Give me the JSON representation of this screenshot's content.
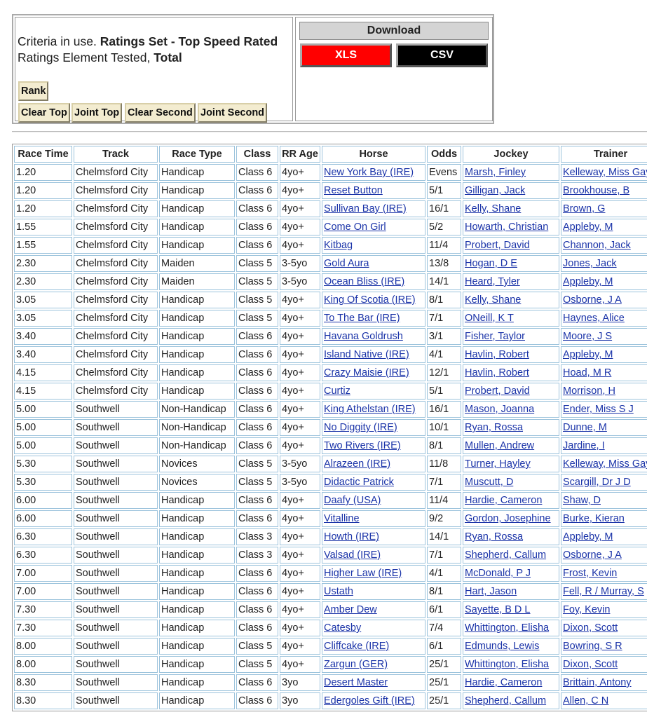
{
  "criteria": {
    "prefix1": "Criteria in use.",
    "ratings_set": "Ratings Set - Top Speed Rated",
    "prefix2": "Ratings Element Tested,",
    "element": "Total"
  },
  "buttons": {
    "rank": "Rank",
    "filters": [
      "Clear Top",
      "Joint Top",
      "Clear Second",
      "Joint Second"
    ]
  },
  "download": {
    "title": "Download",
    "xls": "XLS",
    "csv": "CSV"
  },
  "table": {
    "headers": [
      "Race Time",
      "Track",
      "Race Type",
      "Class",
      "RR Age",
      "Horse",
      "Odds",
      "Jockey",
      "Trainer"
    ],
    "rows": [
      [
        "1.20",
        "Chelmsford City",
        "Handicap",
        "Class 6",
        "4yo+",
        "New York Bay (IRE)",
        "Evens",
        "Marsh, Finley",
        "Kelleway, Miss Gay"
      ],
      [
        "1.20",
        "Chelmsford City",
        "Handicap",
        "Class 6",
        "4yo+",
        "Reset Button",
        "5/1",
        "Gilligan, Jack",
        "Brookhouse, B"
      ],
      [
        "1.20",
        "Chelmsford City",
        "Handicap",
        "Class 6",
        "4yo+",
        "Sullivan Bay (IRE)",
        "16/1",
        "Kelly, Shane",
        "Brown, G"
      ],
      [
        "1.55",
        "Chelmsford City",
        "Handicap",
        "Class 6",
        "4yo+",
        "Come On Girl",
        "5/2",
        "Howarth, Christian",
        "Appleby, M"
      ],
      [
        "1.55",
        "Chelmsford City",
        "Handicap",
        "Class 6",
        "4yo+",
        "Kitbag",
        "11/4",
        "Probert, David",
        "Channon, Jack"
      ],
      [
        "2.30",
        "Chelmsford City",
        "Maiden",
        "Class 5",
        "3-5yo",
        "Gold Aura",
        "13/8",
        "Hogan, D E",
        "Jones, Jack"
      ],
      [
        "2.30",
        "Chelmsford City",
        "Maiden",
        "Class 5",
        "3-5yo",
        "Ocean Bliss (IRE)",
        "14/1",
        "Heard, Tyler",
        "Appleby, M"
      ],
      [
        "3.05",
        "Chelmsford City",
        "Handicap",
        "Class 5",
        "4yo+",
        "King Of Scotia (IRE)",
        "8/1",
        "Kelly, Shane",
        "Osborne, J A"
      ],
      [
        "3.05",
        "Chelmsford City",
        "Handicap",
        "Class 5",
        "4yo+",
        "To The Bar (IRE)",
        "7/1",
        "ONeill, K T",
        "Haynes, Alice"
      ],
      [
        "3.40",
        "Chelmsford City",
        "Handicap",
        "Class 6",
        "4yo+",
        "Havana Goldrush",
        "3/1",
        "Fisher, Taylor",
        "Moore, J S"
      ],
      [
        "3.40",
        "Chelmsford City",
        "Handicap",
        "Class 6",
        "4yo+",
        "Island Native (IRE)",
        "4/1",
        "Havlin, Robert",
        "Appleby, M"
      ],
      [
        "4.15",
        "Chelmsford City",
        "Handicap",
        "Class 6",
        "4yo+",
        "Crazy Maisie (IRE)",
        "12/1",
        "Havlin, Robert",
        "Hoad, M R"
      ],
      [
        "4.15",
        "Chelmsford City",
        "Handicap",
        "Class 6",
        "4yo+",
        "Curtiz",
        "5/1",
        "Probert, David",
        "Morrison, H"
      ],
      [
        "5.00",
        "Southwell",
        "Non-Handicap",
        "Class 6",
        "4yo+",
        "King Athelstan (IRE)",
        "16/1",
        "Mason, Joanna",
        "Ender, Miss S J"
      ],
      [
        "5.00",
        "Southwell",
        "Non-Handicap",
        "Class 6",
        "4yo+",
        "No Diggity (IRE)",
        "10/1",
        "Ryan, Rossa",
        "Dunne, M"
      ],
      [
        "5.00",
        "Southwell",
        "Non-Handicap",
        "Class 6",
        "4yo+",
        "Two Rivers (IRE)",
        "8/1",
        "Mullen, Andrew",
        "Jardine, I"
      ],
      [
        "5.30",
        "Southwell",
        "Novices",
        "Class 5",
        "3-5yo",
        "Alrazeen (IRE)",
        "11/8",
        "Turner, Hayley",
        "Kelleway, Miss Gay"
      ],
      [
        "5.30",
        "Southwell",
        "Novices",
        "Class 5",
        "3-5yo",
        "Didactic Patrick",
        "7/1",
        "Muscutt, D",
        "Scargill, Dr J D"
      ],
      [
        "6.00",
        "Southwell",
        "Handicap",
        "Class 6",
        "4yo+",
        "Daafy (USA)",
        "11/4",
        "Hardie, Cameron",
        "Shaw, D"
      ],
      [
        "6.00",
        "Southwell",
        "Handicap",
        "Class 6",
        "4yo+",
        "Vitalline",
        "9/2",
        "Gordon, Josephine",
        "Burke, Kieran"
      ],
      [
        "6.30",
        "Southwell",
        "Handicap",
        "Class 3",
        "4yo+",
        "Howth (IRE)",
        "14/1",
        "Ryan, Rossa",
        "Appleby, M"
      ],
      [
        "6.30",
        "Southwell",
        "Handicap",
        "Class 3",
        "4yo+",
        "Valsad (IRE)",
        "7/1",
        "Shepherd, Callum",
        "Osborne, J A"
      ],
      [
        "7.00",
        "Southwell",
        "Handicap",
        "Class 6",
        "4yo+",
        "Higher Law (IRE)",
        "4/1",
        "McDonald, P J",
        "Frost, Kevin"
      ],
      [
        "7.00",
        "Southwell",
        "Handicap",
        "Class 6",
        "4yo+",
        "Ustath",
        "8/1",
        "Hart, Jason",
        "Fell, R / Murray, S"
      ],
      [
        "7.30",
        "Southwell",
        "Handicap",
        "Class 6",
        "4yo+",
        "Amber Dew",
        "6/1",
        "Sayette, B D L",
        "Foy, Kevin"
      ],
      [
        "7.30",
        "Southwell",
        "Handicap",
        "Class 6",
        "4yo+",
        "Catesby",
        "7/4",
        "Whittington, Elisha",
        "Dixon, Scott"
      ],
      [
        "8.00",
        "Southwell",
        "Handicap",
        "Class 5",
        "4yo+",
        "Cliffcake (IRE)",
        "6/1",
        "Edmunds, Lewis",
        "Bowring, S R"
      ],
      [
        "8.00",
        "Southwell",
        "Handicap",
        "Class 5",
        "4yo+",
        "Zargun (GER)",
        "25/1",
        "Whittington, Elisha",
        "Dixon, Scott"
      ],
      [
        "8.30",
        "Southwell",
        "Handicap",
        "Class 6",
        "3yo",
        "Desert Master",
        "25/1",
        "Hardie, Cameron",
        "Brittain, Antony"
      ],
      [
        "8.30",
        "Southwell",
        "Handicap",
        "Class 6",
        "3yo",
        "Edergoles Gift (IRE)",
        "25/1",
        "Shepherd, Callum",
        "Allen, C N"
      ]
    ]
  }
}
